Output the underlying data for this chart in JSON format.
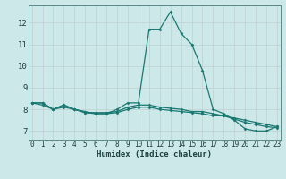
{
  "xlabel": "Humidex (Indice chaleur)",
  "ylabel": "",
  "background_color": "#cde8e8",
  "line_color": "#1a7872",
  "grid_color_major": "#c0d0d0",
  "grid_color_minor": "#daeaea",
  "x_ticks": [
    0,
    1,
    2,
    3,
    4,
    5,
    6,
    7,
    8,
    9,
    10,
    11,
    12,
    13,
    14,
    15,
    16,
    17,
    18,
    19,
    20,
    21,
    22,
    23
  ],
  "y_ticks": [
    7,
    8,
    9,
    10,
    11,
    12
  ],
  "xlim": [
    -0.3,
    23.3
  ],
  "ylim": [
    6.6,
    12.8
  ],
  "series": [
    {
      "x": [
        0,
        1,
        2,
        3,
        4,
        5,
        6,
        7,
        8,
        9,
        10,
        11,
        12,
        13,
        14,
        15,
        16,
        17,
        18,
        19,
        20,
        21,
        22,
        23
      ],
      "y": [
        8.3,
        8.3,
        8.0,
        8.1,
        8.0,
        7.9,
        7.8,
        7.8,
        8.0,
        8.3,
        8.3,
        11.7,
        11.7,
        12.5,
        11.5,
        11.0,
        9.8,
        8.0,
        7.8,
        7.5,
        7.1,
        7.0,
        7.0,
        7.2
      ]
    },
    {
      "x": [
        0,
        1,
        2,
        3,
        4,
        5,
        6,
        7,
        8,
        9,
        10,
        11,
        12,
        13,
        14,
        15,
        16,
        17,
        18,
        19,
        20,
        21,
        22,
        23
      ],
      "y": [
        8.3,
        8.3,
        8.0,
        8.2,
        8.0,
        7.85,
        7.85,
        7.85,
        7.9,
        8.1,
        8.2,
        8.2,
        8.1,
        8.05,
        8.0,
        7.9,
        7.9,
        7.8,
        7.7,
        7.6,
        7.5,
        7.4,
        7.3,
        7.2
      ]
    },
    {
      "x": [
        0,
        1,
        2,
        3,
        4,
        5,
        6,
        7,
        8,
        9,
        10,
        11,
        12,
        13,
        14,
        15,
        16,
        17,
        18,
        19,
        20,
        21,
        22,
        23
      ],
      "y": [
        8.3,
        8.2,
        8.0,
        8.2,
        8.0,
        7.85,
        7.8,
        7.8,
        7.85,
        8.0,
        8.1,
        8.1,
        8.0,
        7.95,
        7.9,
        7.85,
        7.8,
        7.7,
        7.7,
        7.55,
        7.4,
        7.3,
        7.2,
        7.15
      ]
    }
  ]
}
